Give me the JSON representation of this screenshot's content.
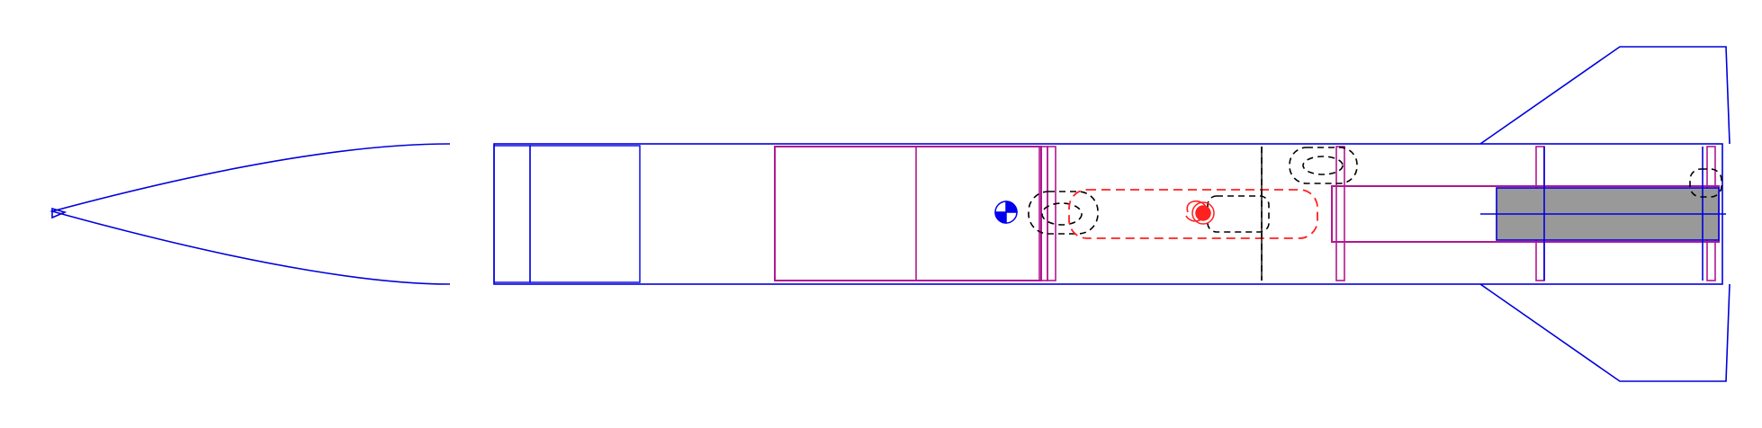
{
  "colors": {
    "background": "#ffffff",
    "body_outline": "#0000dd",
    "inner_component": "#b01890",
    "motor_fill": "#999999",
    "mass_component": "#000000",
    "parachute": "#ff2020",
    "cg_fill": "#0000ee"
  },
  "icons": {
    "center_of_gravity": "cg-marker-icon",
    "center_of_pressure": "cp-marker-icon"
  },
  "components": [
    "nose-cone",
    "body-tube",
    "fin-set",
    "shoulder-coupler",
    "payload-bay",
    "centering-rings",
    "mass-components",
    "parachute",
    "shock-cord",
    "motor-mount-tube",
    "motor",
    "launch-lug"
  ]
}
